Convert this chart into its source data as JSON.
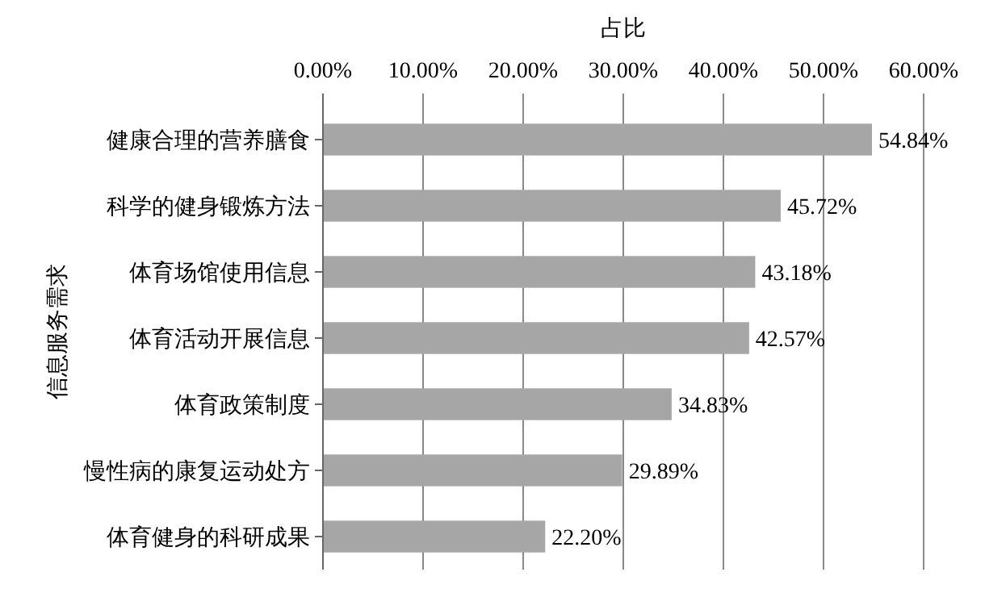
{
  "chart_data": {
    "type": "bar",
    "orientation": "horizontal",
    "xlabel": "占比",
    "ylabel": "信息服务需求",
    "categories": [
      "健康合理的营养膳食",
      "科学的健身锻炼方法",
      "体育场馆使用信息",
      "体育活动开展信息",
      "体育政策制度",
      "慢性病的康复运动处方",
      "体育健身的科研成果"
    ],
    "values": [
      54.84,
      45.72,
      43.18,
      42.57,
      34.83,
      29.89,
      22.2
    ],
    "value_labels": [
      "54.84%",
      "45.72%",
      "43.18%",
      "42.57%",
      "34.83%",
      "29.89%",
      "22.20%"
    ],
    "color": "#a6a6a6",
    "xlim": [
      0,
      60
    ],
    "xticks": [
      {
        "value": 0,
        "label": "0.00%"
      },
      {
        "value": 10,
        "label": "10.00%"
      },
      {
        "value": 20,
        "label": "20.00%"
      },
      {
        "value": 30,
        "label": "30.00%"
      },
      {
        "value": 40,
        "label": "40.00%"
      },
      {
        "value": 50,
        "label": "50.00%"
      },
      {
        "value": 60,
        "label": "60.00%"
      }
    ],
    "grid": "x"
  }
}
